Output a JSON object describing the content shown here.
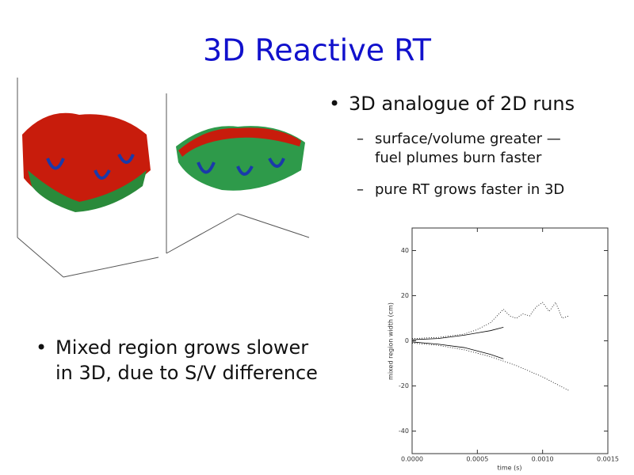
{
  "title": "3D Reactive RT",
  "bullets": [
    {
      "text": "3D analogue of 2D runs",
      "sub": [
        "surface/volume greater —",
        "fuel plumes burn faster",
        "pure RT grows faster in 3D"
      ]
    },
    {
      "lines": [
        "Mixed region grows slower",
        "in 3D, due to S/V difference"
      ]
    }
  ],
  "plot": {
    "type": "line",
    "xlabel": "time (s)",
    "ylabel": "mixed region width (cm)",
    "xlim": [
      0,
      0.0015
    ],
    "ylim": [
      -50,
      50
    ],
    "xticks": [
      {
        "value": 0,
        "label": "0.0000"
      },
      {
        "value": 0.0005,
        "label": "0.0005"
      },
      {
        "value": 0.001,
        "label": "0.0010"
      },
      {
        "value": 0.0015,
        "label": "0.0015"
      }
    ],
    "yticks": [
      -40,
      -20,
      0,
      20,
      40
    ],
    "series": [
      {
        "color": "#000000",
        "dash": true,
        "x": [
          0,
          0.0002,
          0.0004,
          0.0005,
          0.0006,
          0.0007,
          0.00075,
          0.0008,
          0.00085,
          0.0009,
          0.00095,
          0.001,
          0.00105,
          0.0011,
          0.00115,
          0.0012
        ],
        "values": [
          1,
          1.5,
          3,
          5,
          8,
          14,
          11,
          10,
          12,
          11,
          15,
          17,
          13,
          17,
          10,
          11
        ]
      },
      {
        "color": "#000000",
        "dash": false,
        "x": [
          0,
          0.0002,
          0.0004,
          0.0005,
          0.0006,
          0.0007
        ],
        "values": [
          0.5,
          1,
          2.5,
          3.5,
          4.5,
          6
        ]
      },
      {
        "color": "#000000",
        "dash": true,
        "x": [
          0,
          0.0002,
          0.0004,
          0.0006,
          0.0008,
          0.001,
          0.0012
        ],
        "values": [
          -1,
          -2,
          -4,
          -7,
          -11,
          -16,
          -22
        ]
      },
      {
        "color": "#000000",
        "dash": false,
        "x": [
          0,
          0.0002,
          0.0004,
          0.0006,
          0.0007
        ],
        "values": [
          -0.5,
          -1.5,
          -3,
          -6,
          -8
        ]
      }
    ]
  }
}
